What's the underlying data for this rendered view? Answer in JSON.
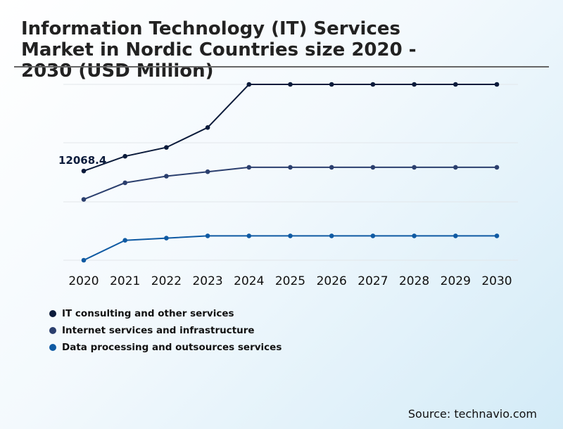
{
  "title": "Information Technology (IT) Services Market in Nordic Countries size 2020 - 2030 (USD Million)",
  "source": "Source: technavio.com",
  "colors": {
    "series": [
      "#0b1b3b",
      "#2b3f6e",
      "#0f5aa3"
    ],
    "grid": "#e2e6ea",
    "annotation": "#0b1b3b"
  },
  "chart_data": {
    "type": "line",
    "x": [
      "2020",
      "2021",
      "2022",
      "2023",
      "2024",
      "2025",
      "2026",
      "2027",
      "2028",
      "2029",
      "2030"
    ],
    "series": [
      {
        "name": "IT consulting and other services",
        "values": [
          12068.4,
          13400,
          14200,
          16000,
          19900,
          19900,
          19900,
          19900,
          19900,
          19900,
          19900
        ]
      },
      {
        "name": "Internet services and infrastructure",
        "values": [
          9500,
          11000,
          11600,
          12000,
          12400,
          12400,
          12400,
          12400,
          12400,
          12400,
          12400
        ]
      },
      {
        "name": "Data processing and outsources services",
        "values": [
          4000,
          5800,
          6000,
          6200,
          6200,
          6200,
          6200,
          6200,
          6200,
          6200,
          6200
        ]
      }
    ],
    "annotations": [
      {
        "series": 0,
        "index": 0,
        "label": "12068.4"
      }
    ],
    "ylim": [
      4000,
      19900
    ],
    "grid": "horizontal",
    "legend_position": "bottom-left"
  }
}
